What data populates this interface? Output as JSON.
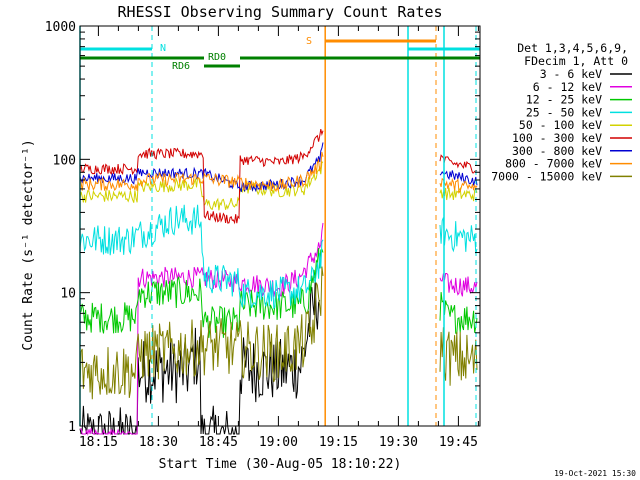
{
  "chart_data": {
    "type": "line",
    "title": "RHESSI Observing Summary Count Rates",
    "xlabel": "Start Time (30-Aug-05 18:10:22)",
    "ylabel": "Count Rate (s⁻¹ detector⁻¹)",
    "yscale": "log",
    "ylim": [
      1,
      1000
    ],
    "xlim_minutes": [
      0,
      100
    ],
    "x_ticks": [
      {
        "label": "18:15",
        "minute": 4.6
      },
      {
        "label": "18:30",
        "minute": 19.6
      },
      {
        "label": "18:45",
        "minute": 34.6
      },
      {
        "label": "19:00",
        "minute": 49.6
      },
      {
        "label": "19:15",
        "minute": 64.6
      },
      {
        "label": "19:30",
        "minute": 79.6
      },
      {
        "label": "19:45",
        "minute": 94.6
      }
    ],
    "y_ticks": [
      {
        "label": "1",
        "value": 1
      },
      {
        "label": "10",
        "value": 10
      },
      {
        "label": "100",
        "value": 100
      },
      {
        "label": "1000",
        "value": 1000
      }
    ],
    "legend_header": [
      "Det 1,3,4,5,6,9,",
      "FDecim 1, Att 0"
    ],
    "data_gap_minutes": [
      61,
      90
    ],
    "series": [
      {
        "name": "3 - 6 keV",
        "color": "#000000",
        "noise": 0.25,
        "points": [
          [
            0,
            0.8
          ],
          [
            14.3,
            0.8
          ],
          [
            14.3,
            2.6
          ],
          [
            28,
            2.6
          ],
          [
            28,
            3.3
          ],
          [
            30,
            3.3
          ],
          [
            30,
            0.8
          ],
          [
            40,
            0.8
          ],
          [
            40,
            2.7
          ],
          [
            50,
            2.6
          ],
          [
            55,
            2.8
          ],
          [
            56,
            3.5
          ],
          [
            60,
            10
          ],
          [
            61,
            15
          ]
        ]
      },
      {
        "name": "6 - 12 keV",
        "color": "#e000e0",
        "noise": 0.08,
        "points": [
          [
            0,
            0.8
          ],
          [
            14.3,
            0.8
          ],
          [
            14.3,
            13
          ],
          [
            30,
            13
          ],
          [
            40,
            12
          ],
          [
            50,
            11
          ],
          [
            55,
            13
          ],
          [
            57,
            16
          ],
          [
            60,
            22
          ],
          [
            61,
            30
          ],
          [
            90,
            13
          ],
          [
            92,
            11.5
          ],
          [
            99.5,
            11
          ]
        ]
      },
      {
        "name": "12 - 25 keV",
        "color": "#00c800",
        "noise": 0.12,
        "points": [
          [
            0,
            6.5
          ],
          [
            14.3,
            6.5
          ],
          [
            14.3,
            10
          ],
          [
            30,
            10
          ],
          [
            31,
            6
          ],
          [
            40,
            6
          ],
          [
            40,
            8
          ],
          [
            55,
            8
          ],
          [
            57,
            9
          ],
          [
            60,
            18
          ],
          [
            61,
            25
          ],
          [
            90,
            8
          ],
          [
            92,
            6.5
          ],
          [
            99.5,
            6.5
          ]
        ]
      },
      {
        "name": "25 - 50 keV",
        "color": "#00e0e0",
        "noise": 0.12,
        "points": [
          [
            0,
            25
          ],
          [
            12,
            25
          ],
          [
            18,
            30
          ],
          [
            24,
            36
          ],
          [
            28,
            35
          ],
          [
            30,
            35
          ],
          [
            31,
            13
          ],
          [
            40,
            12
          ],
          [
            40,
            10
          ],
          [
            50,
            10
          ],
          [
            56,
            10.5
          ],
          [
            58,
            12
          ],
          [
            61,
            20
          ],
          [
            90,
            30
          ],
          [
            92,
            27
          ],
          [
            99.5,
            25
          ]
        ]
      },
      {
        "name": "50 - 100 keV",
        "color": "#d2d200",
        "noise": 0.05,
        "points": [
          [
            0,
            53
          ],
          [
            14.3,
            53
          ],
          [
            14.3,
            62
          ],
          [
            30,
            65
          ],
          [
            31,
            46
          ],
          [
            40,
            46
          ],
          [
            40,
            62
          ],
          [
            50,
            58
          ],
          [
            56,
            60
          ],
          [
            61,
            90
          ],
          [
            90,
            58
          ],
          [
            92,
            55
          ],
          [
            99.5,
            54
          ]
        ]
      },
      {
        "name": "100 - 300 keV",
        "color": "#d20000",
        "noise": 0.04,
        "points": [
          [
            0,
            85
          ],
          [
            14.3,
            85
          ],
          [
            14.3,
            110
          ],
          [
            31,
            110
          ],
          [
            31,
            38
          ],
          [
            40,
            35
          ],
          [
            40,
            100
          ],
          [
            50,
            95
          ],
          [
            56,
            105
          ],
          [
            60,
            150
          ],
          [
            61,
            170
          ],
          [
            90,
            105
          ],
          [
            92,
            95
          ],
          [
            99.5,
            85
          ]
        ]
      },
      {
        "name": "300 - 800 keV",
        "color": "#0000d2",
        "noise": 0.04,
        "points": [
          [
            0,
            72
          ],
          [
            14.3,
            72
          ],
          [
            14.3,
            80
          ],
          [
            31,
            78
          ],
          [
            40,
            62
          ],
          [
            50,
            65
          ],
          [
            56,
            70
          ],
          [
            60,
            100
          ],
          [
            61,
            130
          ],
          [
            90,
            82
          ],
          [
            92,
            77
          ],
          [
            99.5,
            68
          ]
        ]
      },
      {
        "name": "800 - 7000 keV",
        "color": "#ff8c00",
        "noise": 0.05,
        "points": [
          [
            0,
            65
          ],
          [
            14.3,
            65
          ],
          [
            14.3,
            70
          ],
          [
            31,
            72
          ],
          [
            40,
            67
          ],
          [
            50,
            63
          ],
          [
            56,
            70
          ],
          [
            60,
            90
          ],
          [
            61,
            120
          ],
          [
            90,
            70
          ],
          [
            92,
            65
          ],
          [
            99.5,
            60
          ]
        ]
      },
      {
        "name": "7000 - 15000 keV",
        "color": "#808000",
        "noise": 0.22,
        "points": [
          [
            0,
            2.6
          ],
          [
            14.3,
            2.6
          ],
          [
            14.3,
            3.5
          ],
          [
            28,
            3.8
          ],
          [
            30,
            4
          ],
          [
            40,
            3.8
          ],
          [
            50,
            3.5
          ],
          [
            55,
            4
          ],
          [
            58,
            5
          ],
          [
            61,
            12
          ],
          [
            90,
            4
          ],
          [
            92,
            3.3
          ],
          [
            99.5,
            3
          ]
        ]
      }
    ],
    "annotations": {
      "night_label": "N",
      "saa_label": "S",
      "rd0_label": "RD0",
      "rd6_label": "RD6"
    },
    "timestamp": "19-Oct-2021 15:30"
  }
}
